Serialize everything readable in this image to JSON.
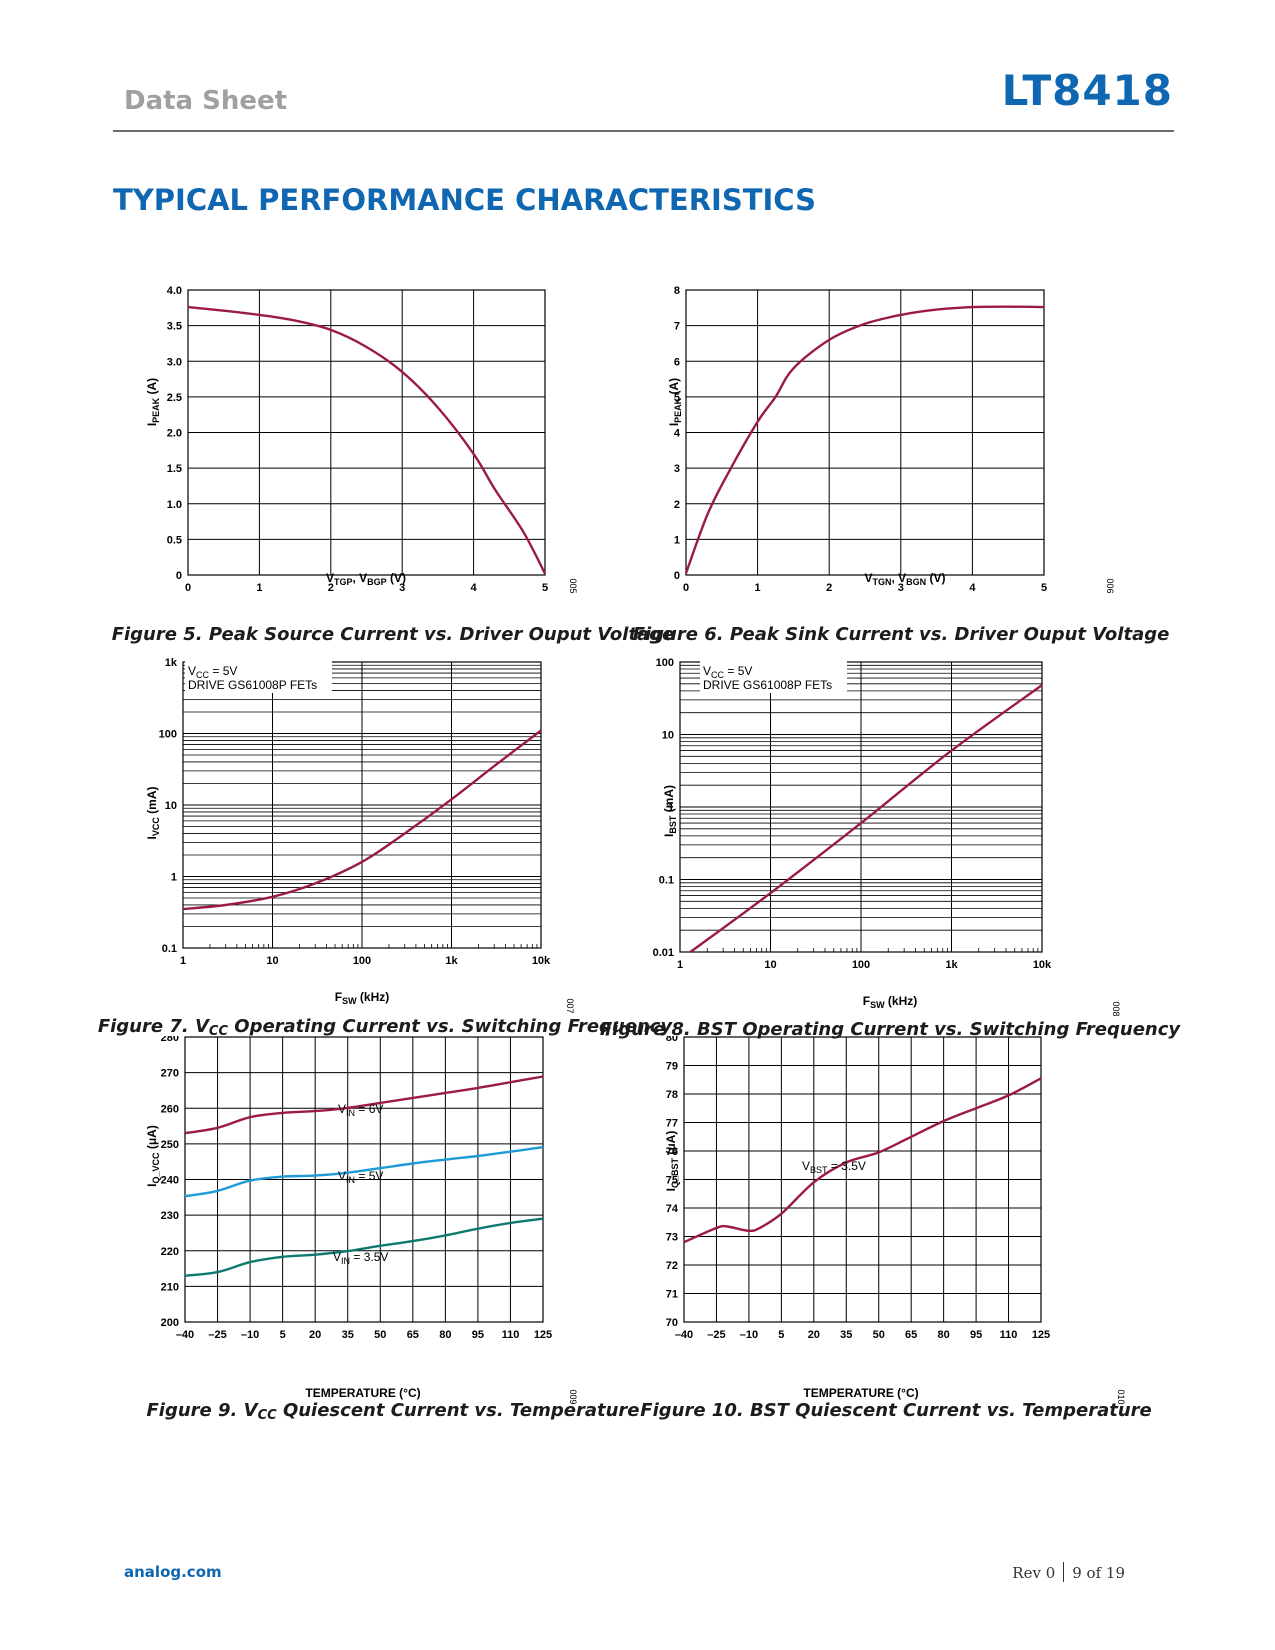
{
  "header": {
    "left": "Data Sheet",
    "right": "LT8418"
  },
  "section_title": "TYPICAL PERFORMANCE CHARACTERISTICS",
  "captions": {
    "fig5": "Figure 5. Peak Source Current vs. Driver Ouput Voltage",
    "fig6": "Figure 6. Peak Sink Current vs. Driver Ouput Voltage",
    "fig7_pre": "Figure 7. V",
    "fig7_sub": "CC",
    "fig7_post": " Operating Current vs. Switching Frequency",
    "fig8": "Figure 8. BST Operating Current vs. Switching Frequency",
    "fig9_pre": "Figure 9. V",
    "fig9_sub": "CC",
    "fig9_post": " Quiescent Current vs. Temperature",
    "fig10": "Figure 10. BST Quiescent Current vs. Temperature"
  },
  "footer": {
    "left": "analog.com",
    "rev": "Rev 0",
    "page": "9 of 19"
  },
  "colors": {
    "curve": "#9b1b48",
    "vin5": "#1e9ad6",
    "vin35": "#0e7a6f",
    "accent": "#0f67b1"
  },
  "chart_data": [
    {
      "id": "fig5",
      "type": "line",
      "xlabel": "VTGP, VBGP (V)",
      "ylabel": "IPEAK (A)",
      "xlim": [
        0,
        5
      ],
      "ylim": [
        0,
        4
      ],
      "xticks": [
        "0",
        "1",
        "2",
        "3",
        "4",
        "5"
      ],
      "yticks": [
        "0",
        "0.5",
        "1.0",
        "1.5",
        "2.0",
        "2.5",
        "3.0",
        "3.5",
        "4.0"
      ],
      "code": "005",
      "series": [
        {
          "x": [
            0,
            0.5,
            1,
            1.5,
            2,
            2.5,
            3,
            3.5,
            4,
            4.3,
            4.7,
            5
          ],
          "y": [
            3.76,
            3.71,
            3.65,
            3.57,
            3.44,
            3.2,
            2.85,
            2.35,
            1.7,
            1.2,
            0.6,
            0.02
          ]
        }
      ]
    },
    {
      "id": "fig6",
      "type": "line",
      "xlabel": "VTGN, VBGN (V)",
      "ylabel": "IPEAK (A)",
      "xlim": [
        0,
        5
      ],
      "ylim": [
        0,
        8
      ],
      "xticks": [
        "0",
        "1",
        "2",
        "3",
        "4",
        "5"
      ],
      "yticks": [
        "0",
        "1",
        "2",
        "3",
        "4",
        "5",
        "6",
        "7",
        "8"
      ],
      "code": "006",
      "series": [
        {
          "x": [
            0,
            0.3,
            0.6,
            1,
            1.25,
            1.5,
            2,
            2.5,
            3,
            3.5,
            4,
            4.5,
            5
          ],
          "y": [
            0.05,
            1.7,
            2.9,
            4.3,
            5.0,
            5.8,
            6.6,
            7.05,
            7.3,
            7.45,
            7.52,
            7.53,
            7.52
          ]
        }
      ]
    },
    {
      "id": "fig7",
      "type": "line",
      "xscale": "log",
      "yscale": "log",
      "xlabel": "FSW (kHz)",
      "ylabel": "IVCC (mA)",
      "xlim": [
        1,
        10000
      ],
      "ylim": [
        0.1,
        1000
      ],
      "xticks": [
        "1",
        "10",
        "100",
        "1k",
        "10k"
      ],
      "yticks": [
        "0.1",
        "1",
        "10",
        "100",
        "1k"
      ],
      "annotations": [
        "VCC = 5V",
        "DRIVE GS61008P FETs"
      ],
      "code": "007",
      "series": [
        {
          "x": [
            1,
            3,
            10,
            30,
            100,
            300,
            1000,
            3000,
            10000
          ],
          "y": [
            0.35,
            0.4,
            0.52,
            0.8,
            1.6,
            4,
            12,
            35,
            110
          ]
        }
      ]
    },
    {
      "id": "fig8",
      "type": "line",
      "xscale": "log",
      "yscale": "log",
      "xlabel": "FSW (kHz)",
      "ylabel": "IBST (mA)",
      "xlim": [
        1,
        10000
      ],
      "ylim": [
        0.01,
        100
      ],
      "xticks": [
        "1",
        "10",
        "100",
        "1k",
        "10k"
      ],
      "yticks": [
        "0.01",
        "0.1",
        "1",
        "10",
        "100"
      ],
      "annotations": [
        "VCC = 5V",
        "DRIVE GS61008P FETs"
      ],
      "code": "008",
      "series": [
        {
          "x": [
            1.3,
            10,
            100,
            1000,
            10000
          ],
          "y": [
            0.01,
            0.065,
            0.6,
            6,
            48
          ]
        }
      ]
    },
    {
      "id": "fig9",
      "type": "line",
      "xlabel": "TEMPERATURE (°C)",
      "ylabel": "IQ_VCC (μA)",
      "xlim": [
        -40,
        125
      ],
      "ylim": [
        200,
        280
      ],
      "xticks": [
        "–40",
        "–25",
        "–10",
        "5",
        "20",
        "35",
        "50",
        "65",
        "80",
        "95",
        "110",
        "125"
      ],
      "yticks": [
        "200",
        "210",
        "220",
        "230",
        "240",
        "250",
        "260",
        "270",
        "280"
      ],
      "code": "009",
      "series": [
        {
          "name": "VIN = 6V",
          "x": [
            -40,
            -25,
            -10,
            5,
            20,
            35,
            50,
            65,
            80,
            95,
            110,
            125
          ],
          "y": [
            253,
            254.5,
            257.5,
            258.7,
            259.2,
            260.1,
            261.5,
            262.9,
            264.3,
            265.7,
            267.3,
            268.9
          ]
        },
        {
          "name": "VIN = 5V",
          "x": [
            -40,
            -25,
            -10,
            5,
            20,
            35,
            50,
            65,
            80,
            95,
            110,
            125
          ],
          "y": [
            235.3,
            236.8,
            239.7,
            240.8,
            241.1,
            241.9,
            243.2,
            244.5,
            245.6,
            246.6,
            247.8,
            249.1
          ]
        },
        {
          "name": "VIN = 3.5V",
          "x": [
            -40,
            -25,
            -10,
            5,
            20,
            35,
            50,
            65,
            80,
            95,
            110,
            125
          ],
          "y": [
            213,
            214,
            216.8,
            218.3,
            218.9,
            219.9,
            221.4,
            222.7,
            224.3,
            226.2,
            227.8,
            229
          ]
        }
      ]
    },
    {
      "id": "fig10",
      "type": "line",
      "xlabel": "TEMPERATURE (°C)",
      "ylabel": "IQ_BST (μA)",
      "xlim": [
        -40,
        125
      ],
      "ylim": [
        70,
        80
      ],
      "xticks": [
        "–40",
        "–25",
        "–10",
        "5",
        "20",
        "35",
        "50",
        "65",
        "80",
        "95",
        "110",
        "125"
      ],
      "yticks": [
        "70",
        "71",
        "72",
        "73",
        "74",
        "75",
        "76",
        "77",
        "78",
        "79",
        "80"
      ],
      "annotations": [
        "VBST = 3.5V"
      ],
      "code": "010",
      "series": [
        {
          "name": "VBST = 3.5V",
          "x": [
            -40,
            -25,
            -20,
            -10,
            -5,
            5,
            20,
            35,
            50,
            65,
            80,
            95,
            110,
            125
          ],
          "y": [
            72.8,
            73.3,
            73.35,
            73.2,
            73.3,
            73.8,
            74.9,
            75.6,
            75.95,
            76.5,
            77.05,
            77.5,
            77.95,
            78.55
          ]
        }
      ]
    }
  ]
}
